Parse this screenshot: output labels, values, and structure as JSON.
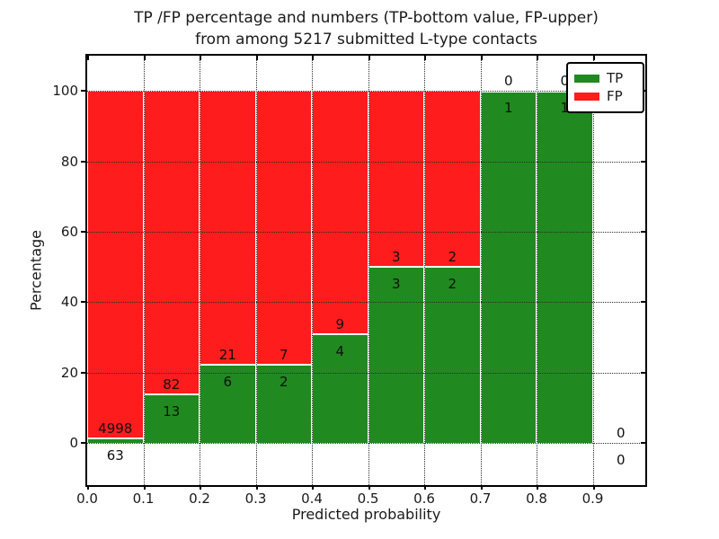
{
  "figure": {
    "title_line1": "TP /FP percentage and numbers (TP-bottom value, FP-upper)",
    "title_line2": "from among 5217 submitted L-type contacts",
    "background_color": "#ffffff"
  },
  "chart_data": {
    "type": "bar",
    "stacked": true,
    "orientation": "vertical",
    "title": "TP /FP percentage and numbers (TP-bottom value, FP-upper) from among 5217 submitted L-type contacts",
    "xlabel": "Predicted probability",
    "ylabel": "Percentage",
    "total_submitted": 5217,
    "bin_width": 0.1,
    "categories": [
      "0.0-0.1",
      "0.1-0.2",
      "0.2-0.3",
      "0.3-0.4",
      "0.4-0.5",
      "0.5-0.6",
      "0.6-0.7",
      "0.7-0.8",
      "0.8-0.9",
      "0.9-1.0"
    ],
    "bin_starts": [
      0.0,
      0.1,
      0.2,
      0.3,
      0.4,
      0.5,
      0.6,
      0.7,
      0.8,
      0.9
    ],
    "series": [
      {
        "name": "TP",
        "color": "#208a20",
        "counts": [
          63,
          13,
          6,
          2,
          4,
          3,
          2,
          1,
          1,
          0
        ]
      },
      {
        "name": "FP",
        "color": "#ff1c1c",
        "counts": [
          4998,
          82,
          21,
          7,
          9,
          3,
          2,
          0,
          0,
          0
        ]
      }
    ],
    "tp_percent": [
      1.24,
      13.68,
      22.22,
      22.22,
      30.77,
      50.0,
      50.0,
      100.0,
      100.0,
      null
    ],
    "bar_total_percent": 100,
    "x_tick_labels": [
      "0.0",
      "0.1",
      "0.2",
      "0.3",
      "0.4",
      "0.5",
      "0.6",
      "0.7",
      "0.8",
      "0.9"
    ],
    "y_tick_labels": [
      "0",
      "20",
      "40",
      "60",
      "80",
      "100"
    ],
    "y_tick_values": [
      0,
      20,
      40,
      60,
      80,
      100
    ],
    "xlim": [
      0.0,
      0.9936
    ],
    "ylim": [
      -12,
      110
    ],
    "grid": {
      "visible": true,
      "style": "dotted",
      "color": "#2b2b2b"
    },
    "legend": {
      "position": "upper right",
      "entries": [
        {
          "label": "TP",
          "color": "#208a20"
        },
        {
          "label": "FP",
          "color": "#ff1c1c"
        }
      ]
    }
  }
}
